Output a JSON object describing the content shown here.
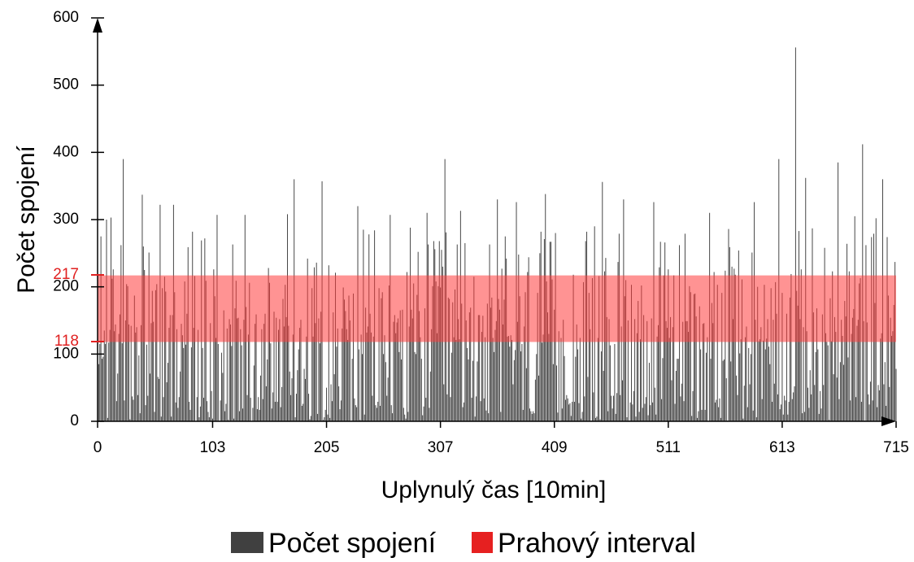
{
  "chart_data": {
    "type": "bar",
    "xlabel": "Uplynulý čas [10min]",
    "ylabel": "Počet spojení",
    "xlim": [
      0,
      715
    ],
    "ylim": [
      0,
      600
    ],
    "x_ticks": [
      "0",
      "103",
      "205",
      "307",
      "409",
      "511",
      "613",
      "715"
    ],
    "y_ticks": [
      "0",
      "100",
      "200",
      "300",
      "400",
      "500",
      "600"
    ],
    "threshold": {
      "name": "Prahový interval",
      "low": 118,
      "high": 217,
      "low_label": "118",
      "high_label": "217",
      "color": "#ff3b3b"
    },
    "series": [
      {
        "name": "Počet spojení",
        "color": "#404040",
        "values": []
      }
    ],
    "peaks": [
      {
        "x": 3,
        "y": 275
      },
      {
        "x": 8,
        "y": 300
      },
      {
        "x": 12,
        "y": 303
      },
      {
        "x": 21,
        "y": 262
      },
      {
        "x": 23,
        "y": 390
      },
      {
        "x": 40,
        "y": 337
      },
      {
        "x": 56,
        "y": 322
      },
      {
        "x": 68,
        "y": 322
      },
      {
        "x": 96,
        "y": 272
      },
      {
        "x": 107,
        "y": 307
      },
      {
        "x": 132,
        "y": 307
      },
      {
        "x": 170,
        "y": 308
      },
      {
        "x": 176,
        "y": 360
      },
      {
        "x": 201,
        "y": 357
      },
      {
        "x": 233,
        "y": 320
      },
      {
        "x": 262,
        "y": 307
      },
      {
        "x": 295,
        "y": 310
      },
      {
        "x": 311,
        "y": 390
      },
      {
        "x": 325,
        "y": 313
      },
      {
        "x": 358,
        "y": 330
      },
      {
        "x": 375,
        "y": 326
      },
      {
        "x": 401,
        "y": 338
      },
      {
        "x": 452,
        "y": 356
      },
      {
        "x": 471,
        "y": 330
      },
      {
        "x": 498,
        "y": 326
      },
      {
        "x": 548,
        "y": 310
      },
      {
        "x": 588,
        "y": 326
      },
      {
        "x": 610,
        "y": 390
      },
      {
        "x": 625,
        "y": 556
      },
      {
        "x": 634,
        "y": 362
      },
      {
        "x": 663,
        "y": 385
      },
      {
        "x": 678,
        "y": 305
      },
      {
        "x": 685,
        "y": 412
      },
      {
        "x": 697,
        "y": 302
      },
      {
        "x": 703,
        "y": 360
      },
      {
        "x": 714,
        "y": 237
      }
    ]
  },
  "legend": [
    {
      "label": "Počet spojení",
      "color": "#404040"
    },
    {
      "label": "Prahový interval",
      "color": "#e62020"
    }
  ]
}
